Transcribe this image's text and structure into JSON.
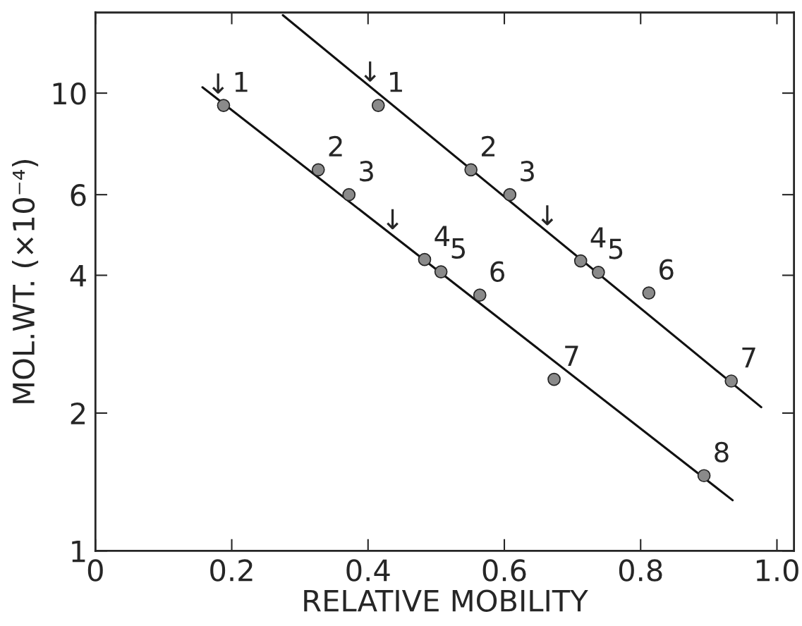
{
  "chart_data": {
    "type": "scatter",
    "xlabel": "RELATIVE MOBILITY",
    "ylabel": "MOL.WT. (×10⁻⁴)",
    "log": "y",
    "xlim": [
      0,
      1.025
    ],
    "ylim": [
      1,
      15
    ],
    "xticks": [
      0,
      0.2,
      0.4,
      0.6,
      0.8,
      {
        "value": 1.0,
        "label": "1.0"
      }
    ],
    "yticks": [
      1,
      2,
      4,
      6,
      10
    ],
    "grid": false,
    "marker": "circle",
    "series": [
      {
        "color": "#8a8a8a",
        "x": [
          0.188,
          0.327,
          0.372,
          0.483,
          0.507,
          0.564,
          0.673,
          0.893
        ],
        "values": [
          9.4,
          6.8,
          6.0,
          4.33,
          4.07,
          3.62,
          2.37,
          1.46
        ]
      },
      {
        "color": "#8a8a8a",
        "x": [
          0.415,
          0.551,
          0.608,
          0.712,
          0.738,
          0.812,
          0.933
        ],
        "values": [
          9.4,
          6.8,
          6.0,
          4.3,
          4.06,
          3.66,
          2.35
        ]
      },
      {
        "type": "line",
        "marker": "none",
        "color": "#111111",
        "x": [
          0.157,
          0.935
        ],
        "values": [
          10.3,
          1.29
        ]
      },
      {
        "type": "line",
        "marker": "none",
        "color": "#111111",
        "x": [
          0.275,
          0.977
        ],
        "values": [
          14.8,
          2.06
        ]
      }
    ],
    "annotations": [
      {
        "text": "1",
        "x": 0.188,
        "y": 9.4
      },
      {
        "text": "2",
        "x": 0.327,
        "y": 6.8
      },
      {
        "text": "3",
        "x": 0.372,
        "y": 6.0
      },
      {
        "text": "4",
        "x": 0.483,
        "y": 4.33
      },
      {
        "text": "5",
        "x": 0.507,
        "y": 4.07
      },
      {
        "text": "6",
        "x": 0.564,
        "y": 3.62
      },
      {
        "text": "7",
        "x": 0.673,
        "y": 2.37
      },
      {
        "text": "8",
        "x": 0.893,
        "y": 1.46
      },
      {
        "text": "1",
        "x": 0.415,
        "y": 9.4
      },
      {
        "text": "2",
        "x": 0.551,
        "y": 6.8
      },
      {
        "text": "3",
        "x": 0.608,
        "y": 6.0
      },
      {
        "text": "4",
        "x": 0.712,
        "y": 4.3
      },
      {
        "text": "5",
        "x": 0.738,
        "y": 4.06
      },
      {
        "text": "6",
        "x": 0.812,
        "y": 3.66
      },
      {
        "text": "7",
        "x": 0.933,
        "y": 2.35
      },
      {
        "text": "↓",
        "x": 0.18,
        "y": 9.7
      },
      {
        "text": "↓",
        "x": 0.436,
        "y": 4.9
      },
      {
        "text": "↓",
        "x": 0.403,
        "y": 10.3
      },
      {
        "text": "↓",
        "x": 0.663,
        "y": 5.0
      }
    ]
  }
}
